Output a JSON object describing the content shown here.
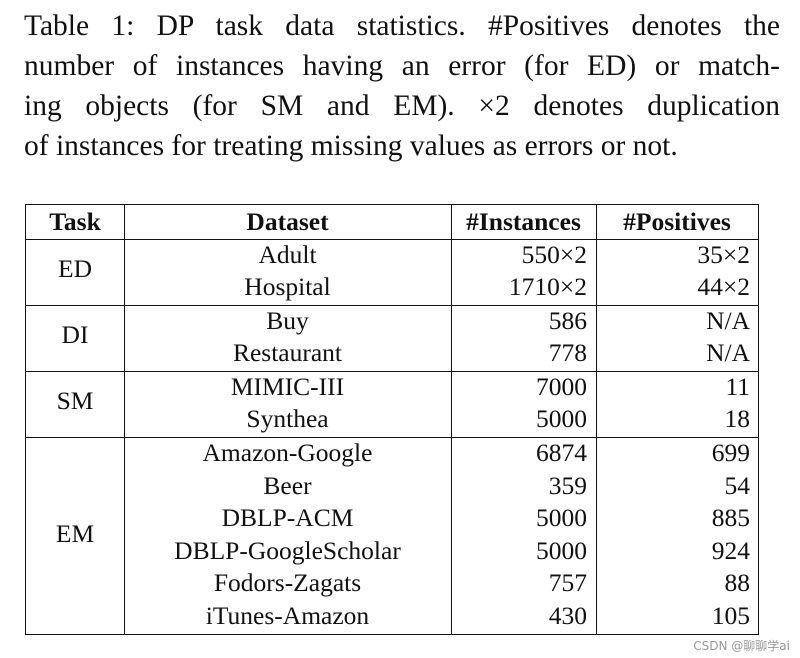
{
  "caption": {
    "line1": "Table 1: DP task data statistics. #Positives denotes the",
    "line2": "number of instances having an error (for ED) or match-",
    "line3": "ing objects (for SM and EM). ×2 denotes duplication",
    "line4": "of instances for treating missing values as errors or not."
  },
  "table": {
    "headers": {
      "task": "Task",
      "dataset": "Dataset",
      "instances": "#Instances",
      "positives": "#Positives"
    },
    "groups": [
      {
        "task": "ED",
        "rows": [
          {
            "dataset": "Adult",
            "instances": "550×2",
            "positives": "35×2"
          },
          {
            "dataset": "Hospital",
            "instances": "1710×2",
            "positives": "44×2"
          }
        ]
      },
      {
        "task": "DI",
        "rows": [
          {
            "dataset": "Buy",
            "instances": "586",
            "positives": "N/A"
          },
          {
            "dataset": "Restaurant",
            "instances": "778",
            "positives": "N/A"
          }
        ]
      },
      {
        "task": "SM",
        "rows": [
          {
            "dataset": "MIMIC-III",
            "instances": "7000",
            "positives": "11"
          },
          {
            "dataset": "Synthea",
            "instances": "5000",
            "positives": "18"
          }
        ]
      },
      {
        "task": "EM",
        "rows": [
          {
            "dataset": "Amazon-Google",
            "instances": "6874",
            "positives": "699"
          },
          {
            "dataset": "Beer",
            "instances": "359",
            "positives": "54"
          },
          {
            "dataset": "DBLP-ACM",
            "instances": "5000",
            "positives": "885"
          },
          {
            "dataset": "DBLP-GoogleScholar",
            "instances": "5000",
            "positives": "924"
          },
          {
            "dataset": "Fodors-Zagats",
            "instances": "757",
            "positives": "88"
          },
          {
            "dataset": "iTunes-Amazon",
            "instances": "430",
            "positives": "105"
          }
        ]
      }
    ]
  },
  "watermark": "CSDN @聊聊学ai"
}
